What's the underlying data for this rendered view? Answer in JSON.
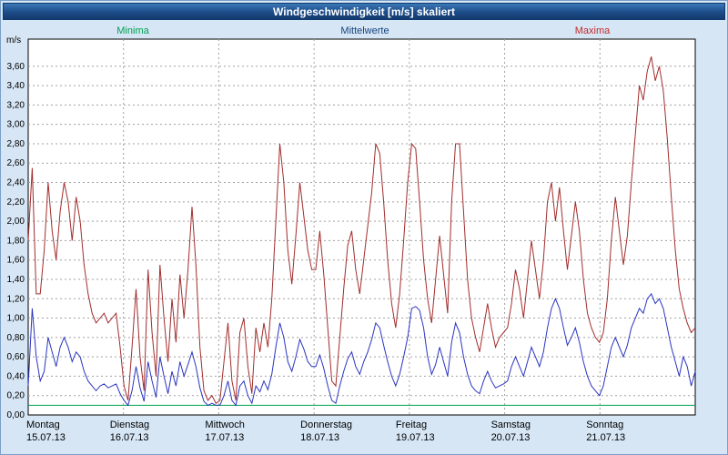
{
  "window": {
    "title": "Windgeschwindigkeit [m/s] skaliert"
  },
  "legend": [
    {
      "label": "Minima",
      "color": "#00A050"
    },
    {
      "label": "Mittelwerte",
      "color": "#16437E"
    },
    {
      "label": "Maxima",
      "color": "#C22A2A"
    }
  ],
  "chart_data": {
    "type": "line",
    "title": "Windgeschwindigkeit [m/s] skaliert",
    "ylabel": "m/s",
    "ylim": [
      0,
      3.88
    ],
    "ytick_step": 0.2,
    "ytick_max": 3.6,
    "decimal_separator": ",",
    "grid": true,
    "legend_position": "top",
    "points_per_day": 24,
    "x_categories": [
      {
        "day": "Montag",
        "date": "15.07.13"
      },
      {
        "day": "Dienstag",
        "date": "16.07.13"
      },
      {
        "day": "Mittwoch",
        "date": "17.07.13"
      },
      {
        "day": "Donnerstag",
        "date": "18.07.13"
      },
      {
        "day": "Freitag",
        "date": "19.07.13"
      },
      {
        "day": "Samstag",
        "date": "20.07.13"
      },
      {
        "day": "Sonntag",
        "date": "21.07.13"
      }
    ],
    "series": [
      {
        "name": "Minima",
        "color": "#00A050",
        "constant": 0.1
      },
      {
        "name": "Mittelwerte",
        "color": "#2A35C0",
        "values": [
          0.3,
          1.1,
          0.6,
          0.35,
          0.45,
          0.8,
          0.65,
          0.5,
          0.7,
          0.8,
          0.7,
          0.55,
          0.65,
          0.6,
          0.45,
          0.35,
          0.3,
          0.25,
          0.3,
          0.32,
          0.28,
          0.3,
          0.32,
          0.22,
          0.15,
          0.1,
          0.25,
          0.5,
          0.28,
          0.14,
          0.55,
          0.35,
          0.18,
          0.6,
          0.4,
          0.22,
          0.45,
          0.3,
          0.55,
          0.4,
          0.52,
          0.65,
          0.5,
          0.28,
          0.14,
          0.1,
          0.12,
          0.1,
          0.1,
          0.2,
          0.35,
          0.15,
          0.1,
          0.3,
          0.35,
          0.2,
          0.12,
          0.3,
          0.24,
          0.35,
          0.26,
          0.42,
          0.7,
          0.95,
          0.8,
          0.55,
          0.45,
          0.6,
          0.78,
          0.68,
          0.55,
          0.5,
          0.5,
          0.62,
          0.48,
          0.3,
          0.15,
          0.12,
          0.3,
          0.45,
          0.58,
          0.65,
          0.5,
          0.42,
          0.55,
          0.65,
          0.78,
          0.95,
          0.9,
          0.72,
          0.55,
          0.4,
          0.3,
          0.42,
          0.6,
          0.8,
          1.1,
          1.12,
          1.08,
          0.9,
          0.6,
          0.42,
          0.52,
          0.7,
          0.55,
          0.4,
          0.75,
          0.95,
          0.85,
          0.6,
          0.42,
          0.3,
          0.25,
          0.22,
          0.35,
          0.45,
          0.35,
          0.28,
          0.3,
          0.32,
          0.35,
          0.5,
          0.6,
          0.5,
          0.4,
          0.55,
          0.7,
          0.6,
          0.5,
          0.65,
          0.9,
          1.1,
          1.2,
          1.1,
          0.9,
          0.72,
          0.8,
          0.9,
          0.75,
          0.55,
          0.4,
          0.3,
          0.25,
          0.2,
          0.3,
          0.5,
          0.7,
          0.8,
          0.7,
          0.6,
          0.72,
          0.9,
          1.0,
          1.1,
          1.05,
          1.2,
          1.25,
          1.15,
          1.2,
          1.1,
          0.9,
          0.7,
          0.55,
          0.4,
          0.6,
          0.5,
          0.3,
          0.45
        ]
      },
      {
        "name": "Maxima",
        "color": "#A22C2C",
        "values": [
          1.8,
          2.55,
          1.25,
          1.25,
          1.7,
          2.4,
          1.9,
          1.6,
          2.1,
          2.4,
          2.2,
          1.8,
          2.25,
          2.0,
          1.55,
          1.25,
          1.05,
          0.95,
          1.0,
          1.05,
          0.95,
          1.0,
          1.05,
          0.7,
          0.3,
          0.15,
          0.7,
          1.3,
          0.6,
          0.25,
          1.5,
          0.85,
          0.4,
          1.55,
          1.0,
          0.55,
          1.2,
          0.75,
          1.45,
          1.0,
          1.5,
          2.15,
          1.55,
          0.7,
          0.25,
          0.15,
          0.2,
          0.12,
          0.15,
          0.55,
          0.95,
          0.35,
          0.15,
          0.85,
          1.0,
          0.5,
          0.22,
          0.9,
          0.65,
          0.95,
          0.7,
          1.2,
          2.0,
          2.8,
          2.4,
          1.7,
          1.35,
          1.85,
          2.4,
          2.05,
          1.7,
          1.5,
          1.5,
          1.9,
          1.45,
          0.9,
          0.35,
          0.3,
          0.8,
          1.3,
          1.75,
          1.9,
          1.5,
          1.25,
          1.6,
          1.95,
          2.3,
          2.8,
          2.7,
          2.2,
          1.6,
          1.15,
          0.9,
          1.25,
          1.8,
          2.4,
          2.8,
          2.75,
          2.2,
          1.6,
          1.2,
          0.95,
          1.4,
          1.85,
          1.45,
          1.05,
          2.2,
          2.8,
          2.8,
          2.1,
          1.4,
          1.0,
          0.8,
          0.65,
          0.9,
          1.15,
          0.9,
          0.7,
          0.8,
          0.85,
          0.9,
          1.15,
          1.5,
          1.3,
          1.0,
          1.4,
          1.8,
          1.5,
          1.2,
          1.6,
          2.2,
          2.4,
          2.0,
          2.35,
          1.9,
          1.5,
          1.85,
          2.2,
          1.9,
          1.4,
          1.05,
          0.9,
          0.8,
          0.75,
          0.85,
          1.2,
          1.8,
          2.25,
          1.9,
          1.55,
          1.85,
          2.4,
          2.9,
          3.4,
          3.25,
          3.55,
          3.7,
          3.45,
          3.6,
          3.35,
          2.85,
          2.25,
          1.7,
          1.3,
          1.1,
          0.95,
          0.85,
          0.9
        ]
      }
    ]
  }
}
